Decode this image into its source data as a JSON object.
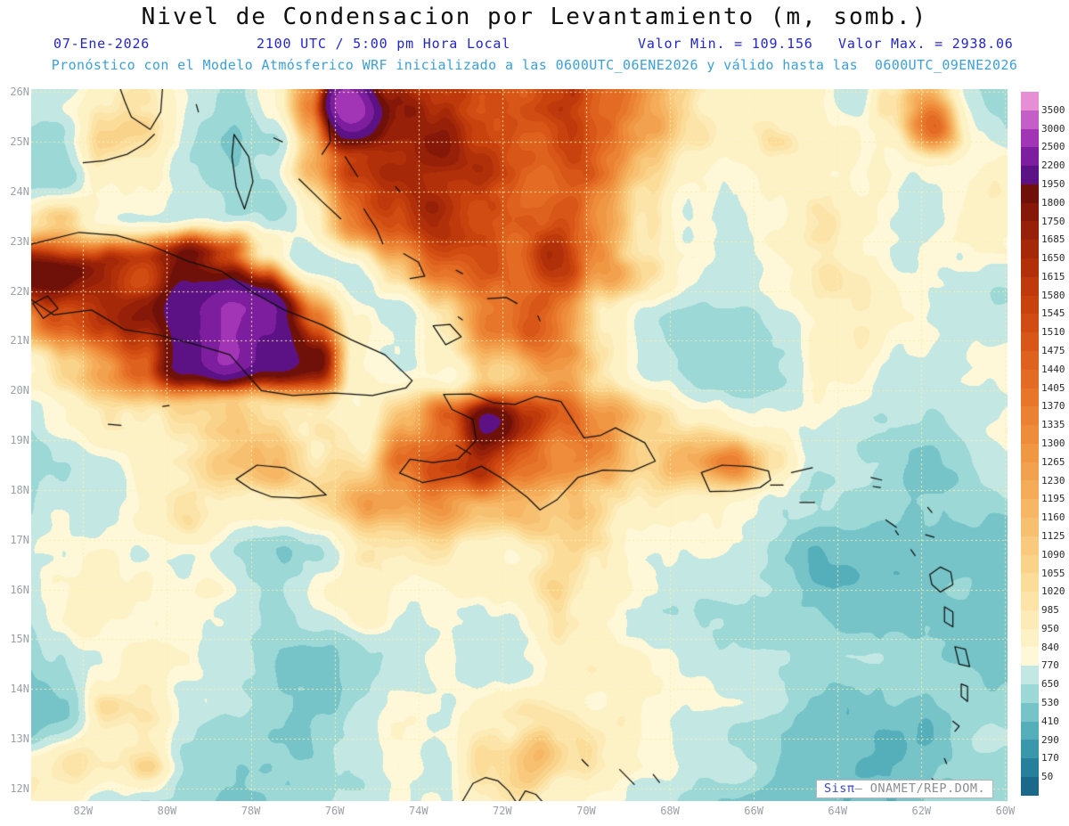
{
  "header": {
    "title": "Nivel de Condensacion por Levantamiento (m, somb.)",
    "date": "07-Ene-2026",
    "time_label": "2100 UTC / 5:00 pm Hora Local",
    "min_label": "Valor Min. = 109.156",
    "max_label": "Valor Max. = 2938.06",
    "model_line": "Pronóstico con el Modelo Atmósferico WRF inicializado a las 0600UTC_06ENE2026 y válido hasta las  0600UTC_09ENE2026"
  },
  "watermark": {
    "brand": "Sisπ",
    "text": "– ONAMET/REP.DOM."
  },
  "chart_data": {
    "type": "heatmap",
    "title": "Nivel de Condensacion por Levantamiento (m, somb.)",
    "units": "m",
    "value_min": 109.156,
    "value_max": 2938.06,
    "projection": "lat-lon",
    "lat_range": [
      12,
      26
    ],
    "lon_range_w": [
      82,
      60
    ],
    "grid_lines": "dotted",
    "legend_position": "right",
    "lat_ticks": [
      "26N",
      "25N",
      "24N",
      "23N",
      "22N",
      "21N",
      "20N",
      "19N",
      "18N",
      "17N",
      "16N",
      "15N",
      "14N",
      "13N",
      "12N"
    ],
    "lon_ticks": [
      "82W",
      "80W",
      "78W",
      "76W",
      "74W",
      "72W",
      "70W",
      "68W",
      "66W",
      "64W",
      "62W",
      "60W"
    ],
    "colorbar": {
      "levels": [
        3500,
        3000,
        2500,
        2200,
        1950,
        1800,
        1750,
        1685,
        1650,
        1615,
        1580,
        1545,
        1510,
        1475,
        1440,
        1405,
        1370,
        1335,
        1300,
        1265,
        1230,
        1195,
        1160,
        1125,
        1090,
        1055,
        1020,
        985,
        950,
        840,
        770,
        650,
        530,
        410,
        290,
        170,
        50
      ],
      "colors": [
        "#E78FD4",
        "#C45FC8",
        "#A235B6",
        "#7C1E9E",
        "#5C1284",
        "#701109",
        "#851808",
        "#962008",
        "#A52808",
        "#B23009",
        "#BE390B",
        "#C8420E",
        "#D14C12",
        "#D85617",
        "#DE611D",
        "#E36B24",
        "#E7762B",
        "#EB8133",
        "#EE8C3B",
        "#F09744",
        "#F2A14E",
        "#F4AC59",
        "#F6B664",
        "#F7C070",
        "#F9CA7D",
        "#FAD38B",
        "#FBDC99",
        "#FCE4A8",
        "#FDEBB7",
        "#FDF2C6",
        "#FEF8D8",
        "#C3E7E2",
        "#9BD8D6",
        "#76C4C8",
        "#55AFBA",
        "#3B97AB",
        "#27809B",
        "#1A688A"
      ]
    },
    "field_grid": {
      "lon_w": [
        83.5,
        82.5,
        81.5,
        80.5,
        79.5,
        78.5,
        77.5,
        76.5,
        75.5,
        74.5,
        73.5,
        72.5,
        71.5,
        70.5,
        69.5,
        68.5,
        67.5,
        66.5,
        65.5,
        64.5,
        63.5,
        62.5,
        61.5,
        60.5,
        59.5
      ],
      "lat": [
        26.5,
        25.5,
        24.5,
        23.5,
        22.5,
        21.5,
        20.5,
        19.5,
        18.5,
        17.5,
        16.5,
        15.5,
        14.5,
        13.5,
        12.5,
        11.5
      ],
      "values_m": [
        [
          520,
          560,
          800,
          950,
          700,
          640,
          900,
          1350,
          1600,
          1500,
          1550,
          1500,
          1450,
          1500,
          1350,
          1200,
          1000,
          900,
          950,
          850,
          700,
          900,
          1100,
          650,
          600
        ],
        [
          480,
          520,
          900,
          1000,
          750,
          600,
          850,
          1400,
          2900,
          1700,
          1600,
          1500,
          1400,
          1450,
          1300,
          1150,
          950,
          900,
          900,
          800,
          750,
          950,
          1400,
          800,
          650
        ],
        [
          520,
          560,
          950,
          900,
          650,
          550,
          700,
          1200,
          1500,
          1600,
          1750,
          1600,
          1450,
          1500,
          1350,
          1100,
          900,
          850,
          950,
          900,
          850,
          780,
          820,
          800,
          760
        ],
        [
          1000,
          1100,
          800,
          700,
          600,
          550,
          600,
          900,
          1300,
          1550,
          1700,
          1600,
          1500,
          1550,
          1400,
          1150,
          800,
          700,
          850,
          900,
          820,
          700,
          720,
          800,
          780
        ],
        [
          1800,
          1920,
          1750,
          1650,
          1850,
          1600,
          1000,
          700,
          800,
          1100,
          1500,
          1600,
          1500,
          1600,
          1300,
          1000,
          750,
          600,
          650,
          850,
          800,
          720,
          780,
          820,
          780
        ],
        [
          1200,
          1500,
          1700,
          1900,
          2300,
          2700,
          2400,
          1500,
          900,
          700,
          1100,
          1400,
          1500,
          1300,
          900,
          650,
          550,
          520,
          600,
          750,
          850,
          750,
          700,
          780,
          820
        ],
        [
          800,
          1000,
          1200,
          1400,
          2000,
          2600,
          2000,
          1800,
          900,
          800,
          750,
          1100,
          1200,
          1250,
          1000,
          800,
          600,
          520,
          550,
          700,
          800,
          750,
          680,
          720,
          780
        ],
        [
          700,
          850,
          950,
          900,
          1000,
          1100,
          1000,
          900,
          850,
          1100,
          1500,
          2100,
          1700,
          1500,
          1300,
          1100,
          900,
          800,
          700,
          650,
          700,
          750,
          700,
          700,
          750
        ],
        [
          650,
          750,
          900,
          1000,
          1000,
          1100,
          1150,
          850,
          900,
          1300,
          1500,
          1700,
          1500,
          1400,
          1300,
          1000,
          1100,
          1300,
          900,
          700,
          650,
          600,
          550,
          600,
          650
        ],
        [
          700,
          800,
          750,
          850,
          950,
          900,
          950,
          1000,
          1100,
          1200,
          1300,
          1200,
          1150,
          1100,
          1050,
          950,
          850,
          800,
          700,
          600,
          550,
          500,
          520,
          560,
          600
        ],
        [
          650,
          750,
          850,
          800,
          700,
          650,
          700,
          800,
          900,
          950,
          1000,
          950,
          900,
          950,
          900,
          800,
          700,
          650,
          600,
          550,
          500,
          480,
          500,
          550,
          580
        ],
        [
          700,
          800,
          900,
          850,
          750,
          680,
          650,
          880,
          900,
          880,
          900,
          850,
          800,
          860,
          860,
          750,
          680,
          620,
          580,
          540,
          500,
          470,
          490,
          530,
          560
        ],
        [
          600,
          680,
          780,
          900,
          800,
          700,
          620,
          600,
          650,
          750,
          850,
          800,
          750,
          800,
          850,
          800,
          720,
          650,
          600,
          560,
          520,
          490,
          510,
          540,
          560
        ],
        [
          560,
          620,
          1000,
          1050,
          850,
          700,
          600,
          560,
          600,
          700,
          800,
          900,
          950,
          900,
          800,
          700,
          620,
          580,
          560,
          530,
          500,
          480,
          500,
          530,
          550
        ],
        [
          950,
          1050,
          950,
          1100,
          750,
          650,
          580,
          540,
          580,
          650,
          750,
          1000,
          1150,
          950,
          800,
          680,
          600,
          560,
          540,
          520,
          490,
          470,
          490,
          520,
          540
        ],
        [
          1000,
          950,
          800,
          700,
          650,
          600,
          560,
          530,
          560,
          620,
          700,
          900,
          1000,
          850,
          750,
          650,
          580,
          550,
          530,
          510,
          480,
          460,
          480,
          510,
          530
        ]
      ]
    }
  }
}
